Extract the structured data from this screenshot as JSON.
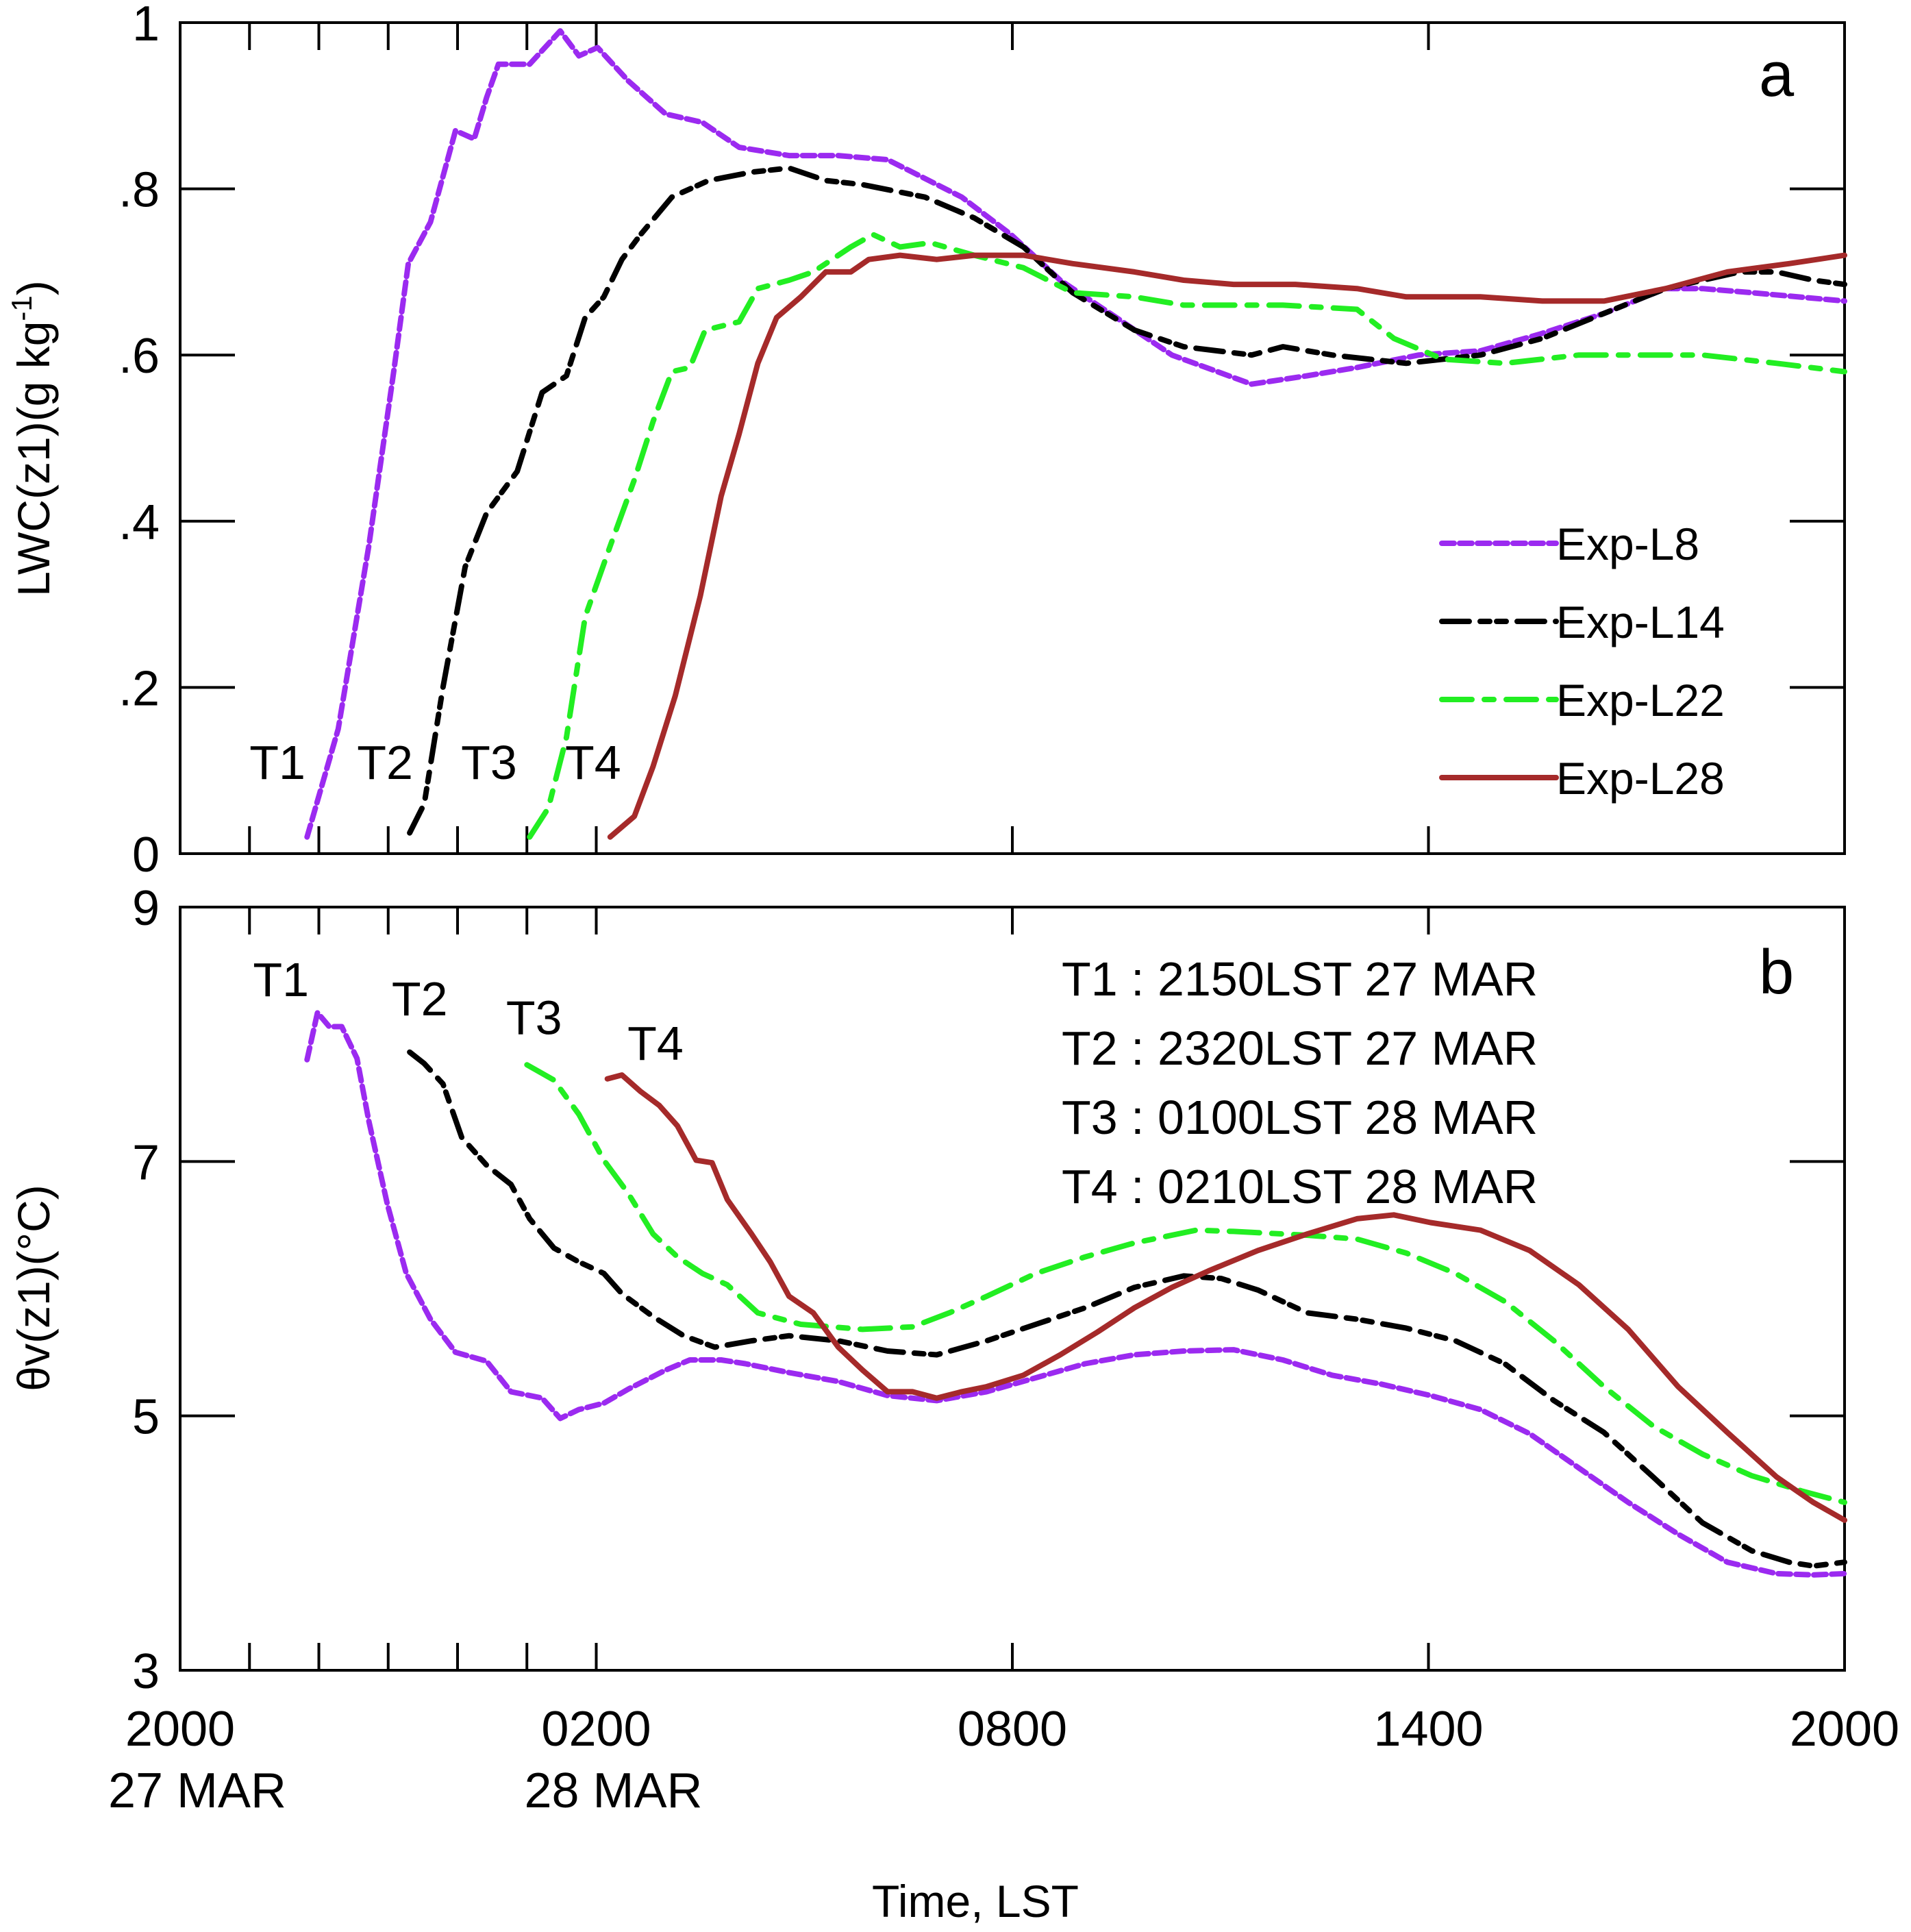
{
  "chart_data": [
    {
      "panel": "a",
      "type": "line",
      "ylabel": "LWC(z1)(g kg^-1)",
      "ylabel_main": "LWC(z1)(g kg",
      "ylabel_sup": "-1",
      "ylabel_close": ")",
      "xlabel": "",
      "x_units": "hours since 2000 LST 27 MAR",
      "xlim": [
        0,
        24
      ],
      "ylim": [
        0,
        1
      ],
      "yticks": [
        0,
        0.2,
        0.4,
        0.6,
        0.8,
        1
      ],
      "ytick_labels": [
        "0",
        ".2",
        ".4",
        ".6",
        ".8",
        "1"
      ],
      "grid": false,
      "legend_position": "lower-right",
      "panel_letter": "a",
      "annotations": [
        {
          "text": "T1",
          "x": 1.0,
          "y": 0.09
        },
        {
          "text": "T2",
          "x": 2.55,
          "y": 0.09
        },
        {
          "text": "T3",
          "x": 4.05,
          "y": 0.09
        },
        {
          "text": "T4",
          "x": 5.55,
          "y": 0.09
        }
      ],
      "series": [
        {
          "name": "Exp-L8",
          "color": "#9b2af0",
          "dash": "short-dash",
          "x": [
            1.83,
            2.28,
            2.72,
            3.08,
            3.29,
            3.61,
            3.97,
            4.24,
            4.42,
            4.59,
            5.04,
            5.48,
            5.75,
            6.02,
            6.46,
            7.0,
            7.53,
            8.06,
            8.78,
            9.49,
            10.2,
            10.56,
            11.27,
            11.98,
            12.69,
            13.41,
            14.3,
            15.45,
            16.25,
            16.97,
            17.86,
            18.75,
            19.6,
            20.53,
            21.42,
            21.95,
            22.66,
            24
          ],
          "y": [
            0.02,
            0.15,
            0.37,
            0.58,
            0.71,
            0.76,
            0.87,
            0.86,
            0.91,
            0.95,
            0.95,
            0.99,
            0.96,
            0.97,
            0.93,
            0.89,
            0.88,
            0.85,
            0.84,
            0.84,
            0.835,
            0.82,
            0.79,
            0.745,
            0.69,
            0.65,
            0.6,
            0.565,
            0.575,
            0.585,
            0.6,
            0.605,
            0.625,
            0.65,
            0.68,
            0.68,
            0.675,
            0.665
          ]
        },
        {
          "name": "Exp-L14",
          "color": "#000000",
          "dash": "dash-dot-dot",
          "x": [
            3.31,
            3.52,
            3.79,
            4.11,
            4.42,
            4.86,
            5.22,
            5.57,
            5.84,
            6.11,
            6.37,
            6.64,
            7.09,
            7.62,
            8.24,
            8.78,
            9.31,
            9.84,
            10.74,
            11.45,
            12.16,
            12.87,
            13.76,
            14.47,
            15.45,
            15.9,
            16.61,
            17.68,
            18.75,
            19.64,
            20.53,
            21.42,
            22.49,
            23.02,
            23.55,
            24
          ],
          "y": [
            0.025,
            0.06,
            0.2,
            0.345,
            0.41,
            0.46,
            0.555,
            0.575,
            0.645,
            0.67,
            0.715,
            0.745,
            0.79,
            0.81,
            0.82,
            0.825,
            0.81,
            0.805,
            0.79,
            0.765,
            0.73,
            0.675,
            0.63,
            0.61,
            0.6,
            0.61,
            0.6,
            0.59,
            0.6,
            0.62,
            0.65,
            0.68,
            0.7,
            0.7,
            0.69,
            0.685
          ]
        },
        {
          "name": "Exp-L22",
          "color": "#22ee22",
          "dash": "dash-dot",
          "x": [
            5.04,
            5.31,
            5.57,
            5.84,
            6.2,
            6.55,
            6.82,
            7.09,
            7.35,
            7.57,
            8.06,
            8.33,
            8.78,
            9.13,
            9.67,
            9.99,
            10.38,
            10.82,
            11.45,
            12.16,
            12.87,
            13.76,
            14.47,
            15.19,
            15.9,
            16.97,
            17.5,
            18.21,
            19.1,
            20.17,
            20.88,
            21.95,
            23.02,
            24
          ],
          "y": [
            0.02,
            0.055,
            0.14,
            0.285,
            0.37,
            0.45,
            0.52,
            0.58,
            0.585,
            0.63,
            0.64,
            0.68,
            0.69,
            0.7,
            0.73,
            0.745,
            0.73,
            0.735,
            0.72,
            0.705,
            0.675,
            0.67,
            0.66,
            0.66,
            0.66,
            0.655,
            0.62,
            0.595,
            0.59,
            0.6,
            0.6,
            0.6,
            0.59,
            0.58
          ]
        },
        {
          "name": "Exp-L28",
          "color": "#a52a2a",
          "dash": "solid",
          "x": [
            6.2,
            6.55,
            6.82,
            7.14,
            7.5,
            7.8,
            8.06,
            8.33,
            8.6,
            8.95,
            9.31,
            9.67,
            9.93,
            10.38,
            10.91,
            11.45,
            12.16,
            12.87,
            13.76,
            14.47,
            15.19,
            16.08,
            16.97,
            17.68,
            18.75,
            19.64,
            20.53,
            21.42,
            22.31,
            23.2,
            24
          ],
          "y": [
            0.02,
            0.045,
            0.105,
            0.19,
            0.31,
            0.43,
            0.505,
            0.59,
            0.645,
            0.67,
            0.7,
            0.7,
            0.715,
            0.72,
            0.715,
            0.72,
            0.72,
            0.71,
            0.7,
            0.69,
            0.685,
            0.685,
            0.68,
            0.67,
            0.67,
            0.665,
            0.665,
            0.68,
            0.7,
            0.71,
            0.72
          ]
        }
      ]
    },
    {
      "panel": "b",
      "type": "line",
      "ylabel": "θv(z1)(°C)",
      "xlabel": "Time, LST",
      "x_units": "hours since 2000 LST 27 MAR",
      "xlim": [
        0,
        24
      ],
      "ylim": [
        3,
        9
      ],
      "yticks": [
        3,
        5,
        7,
        9
      ],
      "ytick_labels": [
        "3",
        "5",
        "7",
        "9"
      ],
      "grid": false,
      "panel_letter": "b",
      "annotations": [
        {
          "text": "T1",
          "x": 1.05,
          "y": 8.3
        },
        {
          "text": "T2",
          "x": 3.05,
          "y": 8.15
        },
        {
          "text": "T3",
          "x": 4.7,
          "y": 8.0
        },
        {
          "text": "T4",
          "x": 6.45,
          "y": 7.8
        }
      ],
      "time_notes": [
        "T1 : 2150LST 27 MAR",
        "T2 : 2320LST 27 MAR",
        "T3 : 0100LST 28 MAR",
        "T4 : 0210LST 28 MAR"
      ],
      "series": [
        {
          "name": "Exp-L8",
          "color": "#9b2af0",
          "dash": "short-dash",
          "x": [
            1.83,
            1.98,
            2.15,
            2.33,
            2.55,
            2.72,
            2.99,
            3.26,
            3.61,
            3.97,
            4.42,
            4.77,
            5.22,
            5.48,
            5.75,
            6.11,
            6.46,
            7.0,
            7.35,
            7.8,
            8.15,
            8.78,
            9.49,
            10.2,
            10.91,
            11.63,
            12.34,
            13.05,
            13.76,
            14.47,
            15.19,
            15.9,
            16.61,
            17.32,
            18.03,
            18.75,
            19.46,
            20.17,
            20.88,
            21.6,
            22.31,
            23.02,
            23.55,
            24
          ],
          "y": [
            7.8,
            8.17,
            8.06,
            8.06,
            7.81,
            7.32,
            6.66,
            6.12,
            5.76,
            5.5,
            5.43,
            5.19,
            5.14,
            4.98,
            5.05,
            5.1,
            5.21,
            5.36,
            5.44,
            5.44,
            5.41,
            5.34,
            5.27,
            5.16,
            5.12,
            5.19,
            5.3,
            5.41,
            5.48,
            5.51,
            5.52,
            5.44,
            5.32,
            5.25,
            5.16,
            5.05,
            4.86,
            4.59,
            4.32,
            4.07,
            3.85,
            3.76,
            3.75,
            3.76
          ]
        },
        {
          "name": "Exp-L14",
          "color": "#000000",
          "dash": "dash-dot-dot",
          "x": [
            3.31,
            3.52,
            3.79,
            4.06,
            4.42,
            4.77,
            5.04,
            5.39,
            5.75,
            6.11,
            6.37,
            6.82,
            7.26,
            7.71,
            8.24,
            8.78,
            9.49,
            10.2,
            10.91,
            11.63,
            12.34,
            13.05,
            13.76,
            14.47,
            15.01,
            15.54,
            16.25,
            16.97,
            17.68,
            18.39,
            19.1,
            19.81,
            20.53,
            21.24,
            21.95,
            22.66,
            23.2,
            23.55,
            24
          ],
          "y": [
            7.86,
            7.77,
            7.61,
            7.19,
            6.97,
            6.82,
            6.55,
            6.32,
            6.21,
            6.12,
            5.96,
            5.78,
            5.63,
            5.54,
            5.59,
            5.63,
            5.59,
            5.51,
            5.48,
            5.59,
            5.72,
            5.85,
            6.01,
            6.1,
            6.08,
            5.99,
            5.81,
            5.76,
            5.69,
            5.59,
            5.41,
            5.12,
            4.87,
            4.52,
            4.16,
            3.94,
            3.85,
            3.82,
            3.85
          ]
        },
        {
          "name": "Exp-L22",
          "color": "#22ee22",
          "dash": "dash-dot",
          "x": [
            5.0,
            5.39,
            5.75,
            6.11,
            6.46,
            6.82,
            7.17,
            7.53,
            7.89,
            8.33,
            8.95,
            9.84,
            10.56,
            11.09,
            11.63,
            12.34,
            13.05,
            13.76,
            14.65,
            15.19,
            16.25,
            16.97,
            17.68,
            18.39,
            19.1,
            19.81,
            20.53,
            21.24,
            21.95,
            22.66,
            23.38,
            24
          ],
          "y": [
            7.76,
            7.64,
            7.37,
            7.01,
            6.75,
            6.43,
            6.25,
            6.12,
            6.03,
            5.81,
            5.72,
            5.68,
            5.7,
            5.81,
            5.94,
            6.12,
            6.25,
            6.36,
            6.46,
            6.45,
            6.42,
            6.39,
            6.28,
            6.12,
            5.9,
            5.59,
            5.23,
            4.92,
            4.7,
            4.53,
            4.41,
            4.32
          ]
        },
        {
          "name": "Exp-L28",
          "color": "#a52a2a",
          "dash": "solid",
          "x": [
            6.16,
            6.37,
            6.64,
            6.91,
            7.17,
            7.44,
            7.67,
            7.89,
            8.24,
            8.51,
            8.78,
            9.13,
            9.49,
            9.84,
            10.2,
            10.56,
            10.91,
            11.27,
            11.63,
            12.16,
            12.69,
            13.23,
            13.76,
            14.3,
            14.83,
            15.54,
            16.25,
            16.97,
            17.5,
            18.03,
            18.75,
            19.46,
            20.17,
            20.88,
            21.6,
            22.31,
            23.02,
            23.55,
            24
          ],
          "y": [
            7.65,
            7.68,
            7.55,
            7.44,
            7.28,
            7.01,
            6.99,
            6.7,
            6.43,
            6.21,
            5.94,
            5.81,
            5.54,
            5.36,
            5.19,
            5.19,
            5.14,
            5.19,
            5.23,
            5.32,
            5.48,
            5.66,
            5.85,
            6.01,
            6.14,
            6.3,
            6.43,
            6.55,
            6.58,
            6.52,
            6.46,
            6.3,
            6.03,
            5.68,
            5.23,
            4.87,
            4.52,
            4.32,
            4.18
          ]
        }
      ]
    }
  ],
  "x_axis": {
    "major_ticks": [
      0,
      6,
      12,
      18,
      24
    ],
    "major_labels": [
      "2000",
      "0200",
      "0800",
      "1400",
      "2000"
    ],
    "date_labels": [
      {
        "x": 0,
        "text": "27 MAR"
      },
      {
        "x": 6,
        "text": "28 MAR"
      }
    ],
    "minor_ticks": [
      1,
      2,
      3,
      4,
      5
    ],
    "title": "Time, LST"
  },
  "legend": [
    {
      "label": "Exp-L8"
    },
    {
      "label": "Exp-L14"
    },
    {
      "label": "Exp-L22"
    },
    {
      "label": "Exp-L28"
    }
  ]
}
